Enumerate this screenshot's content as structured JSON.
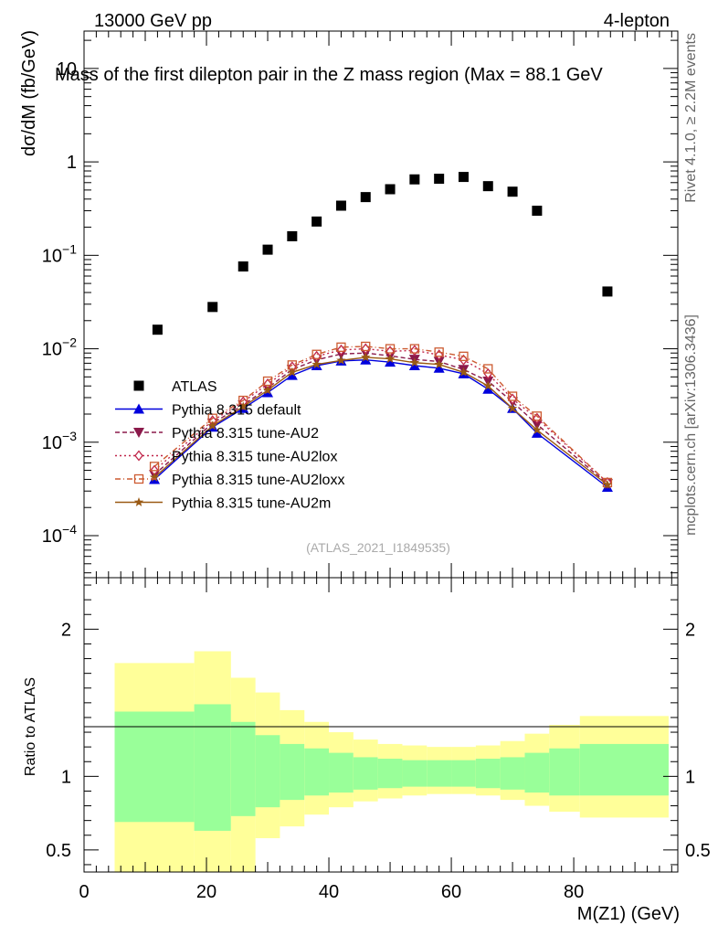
{
  "header": {
    "energy_label": "13000 GeV pp",
    "process_label": "4-lepton",
    "title": "Mass of the first dilepton pair in the Z mass region (Max = 88.1 GeV",
    "ref_label": "(ATLAS_2021_I1849535)",
    "side_top": "Rivet 4.1.0, ≥ 2.2M events",
    "side_bottom": "mcplots.cern.ch [arXiv:1306.3436]"
  },
  "colors": {
    "atlas": "#000000",
    "default": "#0000dd",
    "au2": "#8b1a4b",
    "au2lox": "#c0264a",
    "au2loxx": "#cc5a30",
    "au2m": "#9a5a14",
    "band_outer": "#ffff99",
    "band_inner": "#99ff99"
  },
  "chart_data": [
    {
      "type": "scatter",
      "panel": "main",
      "ylabel": "dσ/dM (fb/GeV)",
      "yscale": "log",
      "xlim": [
        0,
        97
      ],
      "ylim_decades": [
        -4.45,
        1.4
      ],
      "ytick_labels": [
        {
          "exp": -4,
          "base": "10",
          "sup": "−4"
        },
        {
          "exp": -3,
          "base": "10",
          "sup": "−3"
        },
        {
          "exp": -2,
          "base": "10",
          "sup": "−2"
        },
        {
          "exp": -1,
          "base": "10",
          "sup": "−1"
        },
        {
          "exp": 0,
          "base": "1",
          "sup": ""
        },
        {
          "exp": 1,
          "base": "10",
          "sup": ""
        }
      ],
      "atlas": {
        "name": "ATLAS",
        "x": [
          12,
          21,
          26,
          30,
          34,
          38,
          42,
          46,
          50,
          54,
          58,
          62,
          66,
          70,
          74,
          85.5
        ],
        "y": [
          0.016,
          0.028,
          0.076,
          0.115,
          0.16,
          0.23,
          0.34,
          0.42,
          0.51,
          0.65,
          0.66,
          0.69,
          0.55,
          0.48,
          0.3,
          0.041
        ]
      },
      "series": [
        {
          "name": "Pythia 8.315 default",
          "key": "default",
          "marker": "triangle-up",
          "dash": "",
          "x": [
            11.5,
            21,
            26,
            30,
            34,
            38,
            42,
            46,
            50,
            54,
            58,
            62,
            66,
            70,
            74,
            85.5
          ],
          "y": [
            0.0004,
            0.00145,
            0.0023,
            0.0034,
            0.0052,
            0.0066,
            0.0074,
            0.0076,
            0.0072,
            0.0066,
            0.0062,
            0.0054,
            0.0037,
            0.0023,
            0.00125,
            0.00033
          ]
        },
        {
          "name": "Pythia 8.315 tune-AU2",
          "key": "au2",
          "marker": "triangle-down",
          "dash": "5,3",
          "x": [
            11.5,
            21,
            26,
            30,
            34,
            38,
            42,
            46,
            50,
            54,
            58,
            62,
            66,
            70,
            74,
            85.5
          ],
          "y": [
            0.00045,
            0.0016,
            0.0025,
            0.0038,
            0.006,
            0.0076,
            0.0088,
            0.009,
            0.0084,
            0.0077,
            0.0073,
            0.006,
            0.0045,
            0.0027,
            0.00155,
            0.00036
          ]
        },
        {
          "name": "Pythia 8.315 tune-AU2lox",
          "key": "au2lox",
          "marker": "diamond",
          "dash": "2,3",
          "x": [
            11.5,
            21,
            26,
            30,
            34,
            38,
            42,
            46,
            50,
            54,
            58,
            62,
            66,
            70,
            74,
            85.5
          ],
          "y": [
            0.0005,
            0.0017,
            0.0027,
            0.0042,
            0.0064,
            0.0083,
            0.0097,
            0.01,
            0.0094,
            0.0096,
            0.0086,
            0.0076,
            0.0054,
            0.0029,
            0.0018,
            0.00037
          ]
        },
        {
          "name": "Pythia 8.315 tune-AU2loxx",
          "key": "au2loxx",
          "marker": "square-open",
          "dash": "6,3,1,3",
          "x": [
            11.5,
            21,
            26,
            30,
            34,
            38,
            42,
            46,
            50,
            54,
            58,
            62,
            66,
            70,
            74,
            85.5
          ],
          "y": [
            0.00055,
            0.0018,
            0.0028,
            0.0045,
            0.0067,
            0.0087,
            0.0104,
            0.0106,
            0.01,
            0.01,
            0.0092,
            0.0083,
            0.0061,
            0.0031,
            0.0019,
            0.00037
          ]
        },
        {
          "name": "Pythia 8.315 tune-AU2m",
          "key": "au2m",
          "marker": "star",
          "dash": "",
          "x": [
            11.5,
            21,
            26,
            30,
            34,
            38,
            42,
            46,
            50,
            54,
            58,
            62,
            66,
            70,
            74,
            85.5
          ],
          "y": [
            0.00042,
            0.0015,
            0.0024,
            0.0036,
            0.0056,
            0.0068,
            0.0075,
            0.0081,
            0.0078,
            0.0071,
            0.0068,
            0.0056,
            0.004,
            0.0023,
            0.00135,
            0.00035
          ]
        }
      ]
    },
    {
      "type": "area",
      "panel": "ratio",
      "ylabel": "Ratio to ATLAS",
      "xlabel": "M(Z1) (GeV)",
      "xlim": [
        0,
        97
      ],
      "ylim": [
        0.35,
        2.35
      ],
      "yticks": [
        0.5,
        1,
        2
      ],
      "ytick_labels": [
        "0.5",
        "1",
        "2"
      ],
      "xticks": [
        0,
        20,
        40,
        60,
        80
      ],
      "xtick_labels": [
        "0",
        "20",
        "40",
        "60",
        "80"
      ],
      "bins": [
        {
          "lo": 5,
          "hi": 18,
          "in_lo": 0.69,
          "in_hi": 1.44,
          "out_lo": 0.35,
          "out_hi": 1.77
        },
        {
          "lo": 18,
          "hi": 24,
          "in_lo": 0.63,
          "in_hi": 1.49,
          "out_lo": 0.35,
          "out_hi": 1.85
        },
        {
          "lo": 24,
          "hi": 28,
          "in_lo": 0.73,
          "in_hi": 1.37,
          "out_lo": 0.35,
          "out_hi": 1.67
        },
        {
          "lo": 28,
          "hi": 32,
          "in_lo": 0.79,
          "in_hi": 1.28,
          "out_lo": 0.58,
          "out_hi": 1.57
        },
        {
          "lo": 32,
          "hi": 36,
          "in_lo": 0.84,
          "in_hi": 1.22,
          "out_lo": 0.66,
          "out_hi": 1.45
        },
        {
          "lo": 36,
          "hi": 40,
          "in_lo": 0.87,
          "in_hi": 1.19,
          "out_lo": 0.74,
          "out_hi": 1.37
        },
        {
          "lo": 40,
          "hi": 44,
          "in_lo": 0.89,
          "in_hi": 1.16,
          "out_lo": 0.79,
          "out_hi": 1.3
        },
        {
          "lo": 44,
          "hi": 48,
          "in_lo": 0.91,
          "in_hi": 1.13,
          "out_lo": 0.83,
          "out_hi": 1.25
        },
        {
          "lo": 48,
          "hi": 52,
          "in_lo": 0.92,
          "in_hi": 1.12,
          "out_lo": 0.85,
          "out_hi": 1.22
        },
        {
          "lo": 52,
          "hi": 56,
          "in_lo": 0.93,
          "in_hi": 1.11,
          "out_lo": 0.87,
          "out_hi": 1.21
        },
        {
          "lo": 56,
          "hi": 60,
          "in_lo": 0.93,
          "in_hi": 1.11,
          "out_lo": 0.88,
          "out_hi": 1.2
        },
        {
          "lo": 60,
          "hi": 64,
          "in_lo": 0.93,
          "in_hi": 1.11,
          "out_lo": 0.88,
          "out_hi": 1.2
        },
        {
          "lo": 64,
          "hi": 68,
          "in_lo": 0.92,
          "in_hi": 1.12,
          "out_lo": 0.87,
          "out_hi": 1.21
        },
        {
          "lo": 68,
          "hi": 72,
          "in_lo": 0.91,
          "in_hi": 1.13,
          "out_lo": 0.84,
          "out_hi": 1.24
        },
        {
          "lo": 72,
          "hi": 76,
          "in_lo": 0.89,
          "in_hi": 1.16,
          "out_lo": 0.8,
          "out_hi": 1.29
        },
        {
          "lo": 76,
          "hi": 81,
          "in_lo": 0.87,
          "in_hi": 1.19,
          "out_lo": 0.76,
          "out_hi": 1.35
        },
        {
          "lo": 81,
          "hi": 95.5,
          "in_lo": 0.87,
          "in_hi": 1.22,
          "out_lo": 0.72,
          "out_hi": 1.41
        }
      ]
    }
  ]
}
